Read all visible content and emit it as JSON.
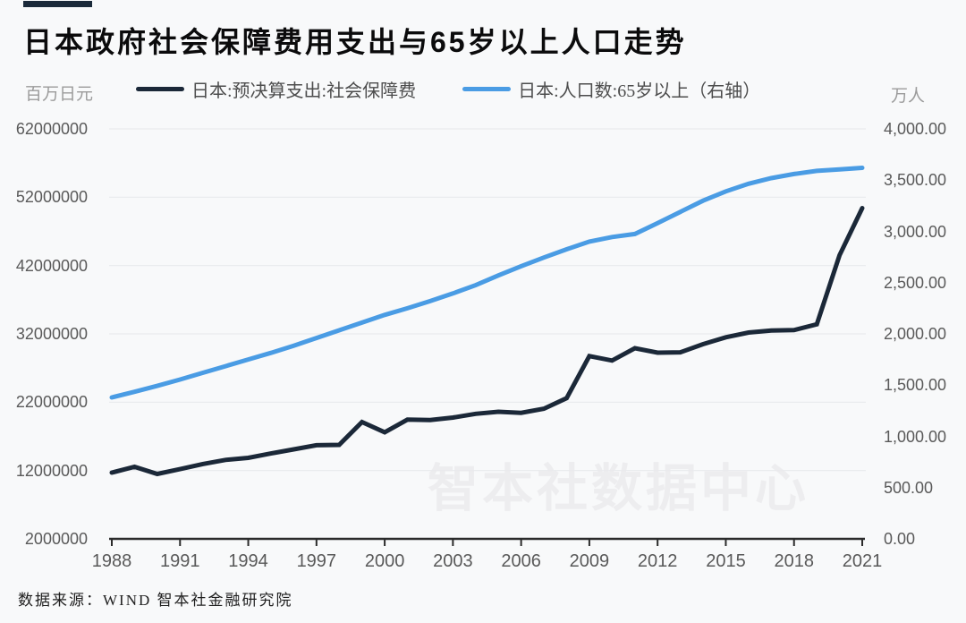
{
  "header": {
    "title": "日本政府社会保障费用支出与65岁以上人口走势"
  },
  "footer": {
    "source": "数据来源：WIND 智本社金融研究院"
  },
  "colors": {
    "background": "#f8f9fa",
    "accent_bar": "#1b2a3a",
    "expenditure_line": "#1b2838",
    "population_line": "#4a9ce4",
    "grid": "#e9eaed",
    "axis": "#2b2b2b",
    "tick_text": "#595959",
    "unit_text": "#9b9b9b",
    "watermark": "#ededef"
  },
  "chart_data": {
    "type": "line",
    "title": "日本政府社会保障费用支出与65岁以上人口走势",
    "grid": true,
    "legend_position": "top",
    "watermark": "智本社数据中心",
    "x": [
      1988,
      1989,
      1990,
      1991,
      1992,
      1993,
      1994,
      1995,
      1996,
      1997,
      1998,
      1999,
      2000,
      2001,
      2002,
      2003,
      2004,
      2005,
      2006,
      2007,
      2008,
      2009,
      2010,
      2011,
      2012,
      2013,
      2014,
      2015,
      2016,
      2017,
      2018,
      2019,
      2020,
      2021
    ],
    "x_tick_years": [
      1988,
      1991,
      1994,
      1997,
      2000,
      2003,
      2006,
      2009,
      2012,
      2015,
      2018,
      2021
    ],
    "series": [
      {
        "name": "日本:预决算支出:社会保障费",
        "axis": "left",
        "color": "#1b2838",
        "values": [
          11700000,
          12550000,
          11500000,
          12200000,
          12950000,
          13550000,
          13850000,
          14500000,
          15100000,
          15700000,
          15750000,
          19100000,
          17600000,
          19450000,
          19400000,
          19750000,
          20300000,
          20600000,
          20450000,
          21050000,
          22600000,
          28750000,
          28100000,
          29900000,
          29250000,
          29300000,
          30500000,
          31500000,
          32200000,
          32500000,
          32550000,
          33400000,
          43500000,
          50400000
        ]
      },
      {
        "name": "日本:人口数:65岁以上（右轴）",
        "axis": "right",
        "color": "#4a9ce4",
        "values": [
          1380,
          1435,
          1493,
          1555,
          1620,
          1685,
          1750,
          1815,
          1885,
          1960,
          2035,
          2110,
          2185,
          2250,
          2320,
          2395,
          2475,
          2570,
          2660,
          2745,
          2825,
          2900,
          2945,
          2975,
          3080,
          3190,
          3300,
          3390,
          3465,
          3520,
          3560,
          3590,
          3605,
          3620
        ]
      }
    ],
    "left_axis": {
      "unit": "百万日元",
      "min": 2000000,
      "max": 62000000,
      "tick_values": [
        62000000,
        52000000,
        42000000,
        32000000,
        22000000,
        12000000,
        2000000
      ],
      "tick_labels": [
        "62000000",
        "52000000",
        "42000000",
        "32000000",
        "22000000",
        "12000000",
        "2000000"
      ]
    },
    "right_axis": {
      "unit": "万人",
      "min": 0,
      "max": 4000,
      "tick_values": [
        4000,
        3500,
        3000,
        2500,
        2000,
        1500,
        1000,
        500,
        0
      ],
      "tick_labels": [
        "4,000.00",
        "3,500.00",
        "3,000.00",
        "2,500.00",
        "2,000.00",
        "1,500.00",
        "1,000.00",
        "500.00",
        "0.00"
      ]
    }
  }
}
